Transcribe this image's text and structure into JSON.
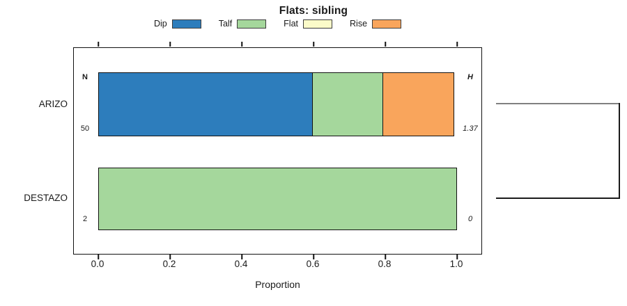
{
  "title": "Flats: sibling",
  "legend": {
    "items": [
      {
        "label": "Dip",
        "color": "#2D7DBC"
      },
      {
        "label": "Talf",
        "color": "#A5D79C"
      },
      {
        "label": "Flat",
        "color": "#FBFBC9"
      },
      {
        "label": "Rise",
        "color": "#F9A55C"
      }
    ]
  },
  "chart_data": {
    "type": "bar",
    "orientation": "horizontal-stacked",
    "title": "Flats: sibling",
    "xlabel": "Proportion",
    "xlim": [
      0,
      1
    ],
    "x_ticks": [
      0.0,
      0.2,
      0.4,
      0.6,
      0.8,
      1.0
    ],
    "x_tick_labels": [
      "0.0",
      "0.2",
      "0.4",
      "0.6",
      "0.8",
      "1.0"
    ],
    "grid": false,
    "legend_position": "top",
    "categories": [
      "ARIZO",
      "DESTAZO"
    ],
    "series": [
      {
        "name": "Dip",
        "color": "#2D7DBC",
        "values": [
          0.6,
          0
        ]
      },
      {
        "name": "Talf",
        "color": "#A5D79C",
        "values": [
          0.2,
          1.0
        ]
      },
      {
        "name": "Flat",
        "color": "#FBFBC9",
        "values": [
          0,
          0
        ]
      },
      {
        "name": "Rise",
        "color": "#F9A55C",
        "values": [
          0.2,
          0
        ]
      }
    ],
    "annotations": {
      "n_header": "N",
      "h_header": "H",
      "n_values": [
        "50",
        "2"
      ],
      "h_values": [
        "1.37",
        "0"
      ]
    },
    "dendrogram": {
      "join_height": 1.37,
      "leaf_heights": [
        1.37,
        0
      ]
    }
  }
}
